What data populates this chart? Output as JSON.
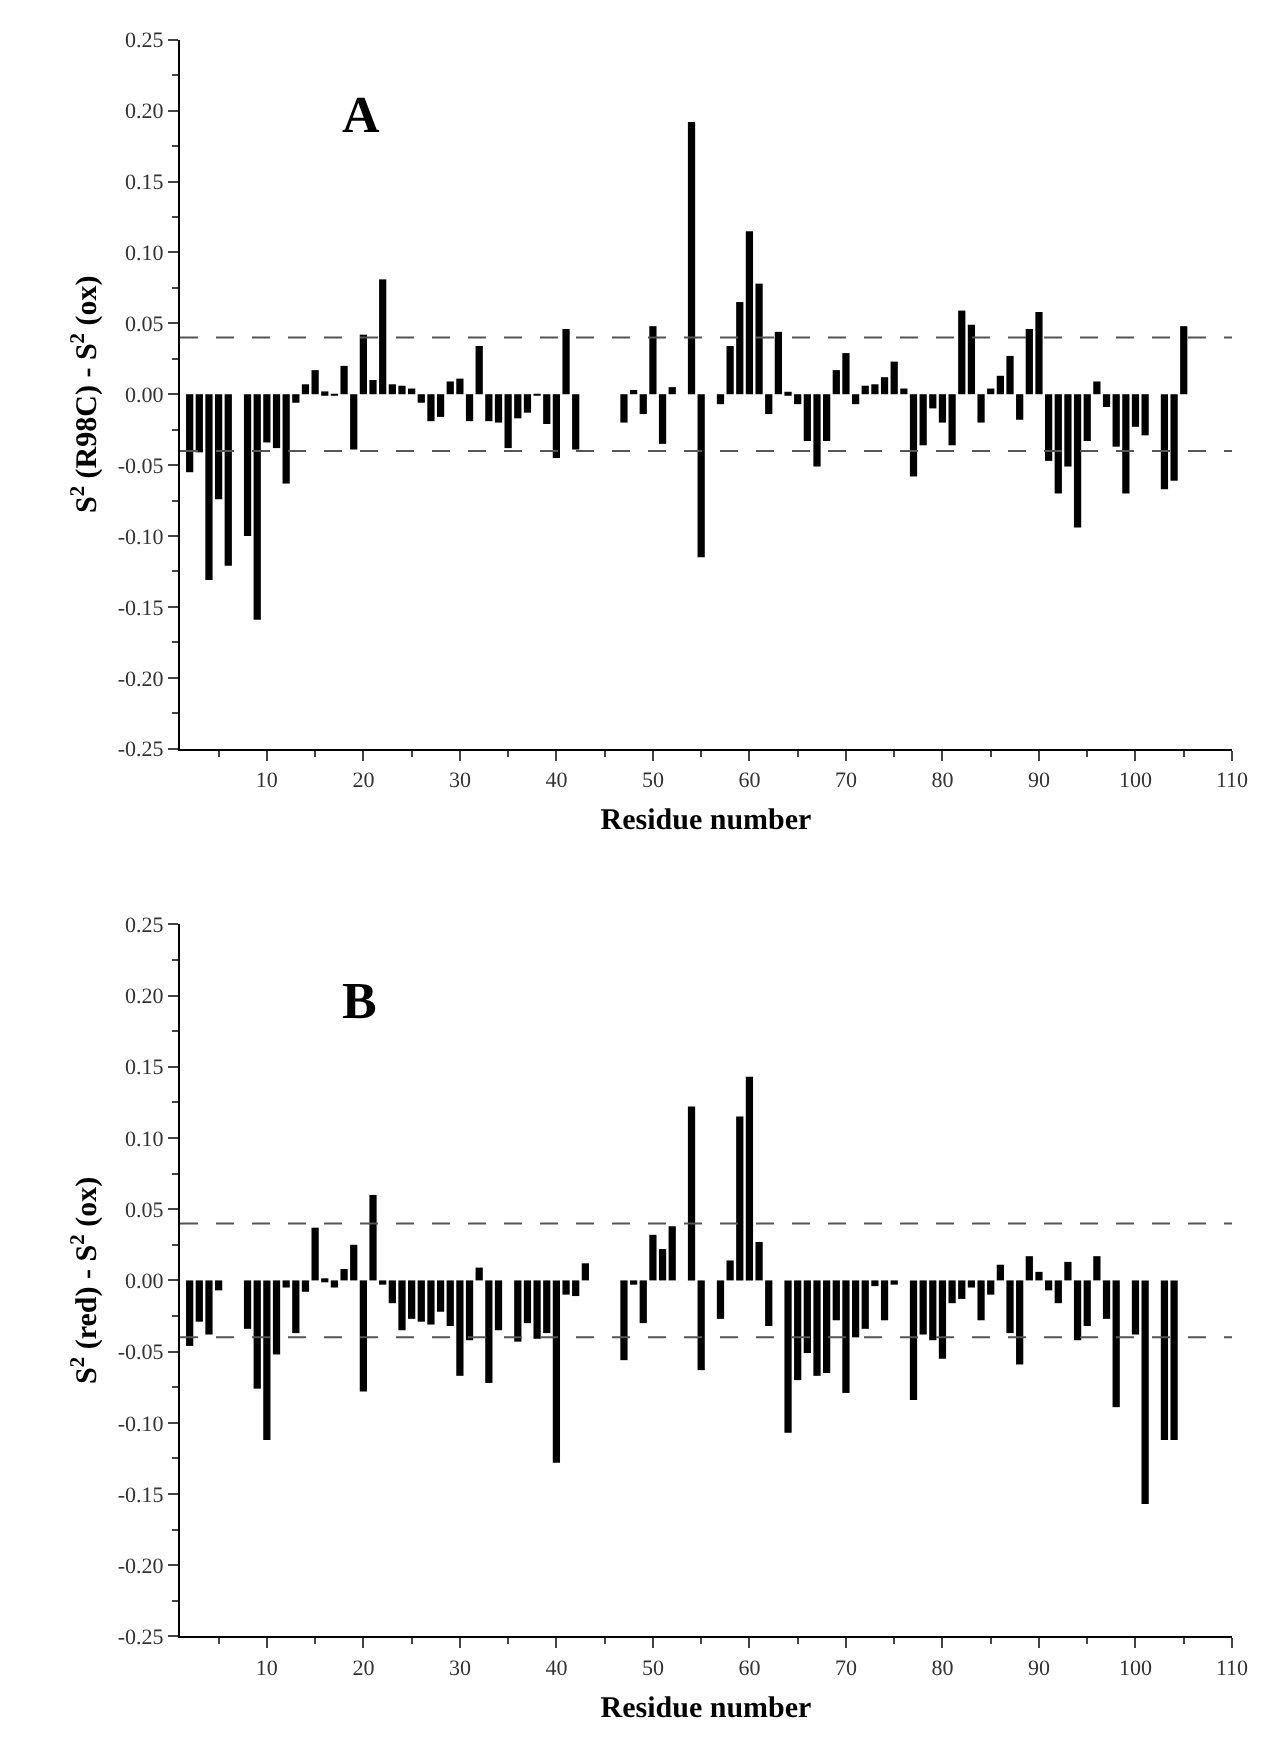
{
  "chart_data": [
    {
      "type": "bar",
      "title": "A",
      "xlabel": "Residue number",
      "ylabel": "S$^{2}$ (R98C) - S$^{2}$ (ox)",
      "x": [
        2,
        3,
        4,
        5,
        6,
        8,
        9,
        10,
        11,
        12,
        13,
        14,
        15,
        16,
        17,
        18,
        19,
        20,
        21,
        22,
        23,
        24,
        25,
        26,
        27,
        28,
        29,
        30,
        31,
        32,
        33,
        34,
        35,
        36,
        37,
        38,
        39,
        40,
        41,
        42,
        47,
        48,
        49,
        50,
        51,
        52,
        54,
        55,
        57,
        58,
        59,
        60,
        61,
        62,
        63,
        64,
        65,
        66,
        67,
        68,
        69,
        70,
        71,
        72,
        73,
        74,
        75,
        76,
        77,
        78,
        79,
        80,
        81,
        82,
        83,
        84,
        85,
        86,
        87,
        88,
        89,
        90,
        91,
        92,
        93,
        94,
        95,
        96,
        97,
        98,
        99,
        100,
        101,
        103,
        104,
        105
      ],
      "values": [
        -0.055,
        -0.041,
        -0.131,
        -0.074,
        -0.121,
        -0.1,
        -0.159,
        -0.034,
        -0.038,
        -0.063,
        -0.006,
        0.007,
        0.017,
        0.002,
        -0.001,
        0.02,
        -0.039,
        0.042,
        0.01,
        0.081,
        0.007,
        0.006,
        0.004,
        -0.006,
        -0.019,
        -0.016,
        0.009,
        0.011,
        -0.019,
        0.034,
        -0.019,
        -0.02,
        -0.038,
        -0.017,
        -0.013,
        -0.001,
        -0.021,
        -0.045,
        0.046,
        -0.039,
        -0.02,
        0.003,
        -0.014,
        0.048,
        -0.035,
        0.005,
        0.192,
        -0.115,
        -0.007,
        0.034,
        0.065,
        0.115,
        0.078,
        -0.014,
        0.044,
        0.001,
        -0.007,
        -0.033,
        -0.051,
        -0.033,
        0.017,
        0.029,
        -0.007,
        0.006,
        0.007,
        0.012,
        0.023,
        0.004,
        -0.058,
        -0.036,
        -0.01,
        -0.02,
        -0.036,
        0.059,
        0.049,
        -0.02,
        0.004,
        0.013,
        0.027,
        -0.018,
        0.046,
        0.058,
        -0.047,
        -0.07,
        -0.051,
        -0.094,
        -0.033,
        0.009,
        -0.009,
        -0.037,
        -0.07,
        -0.023,
        -0.029,
        -0.067,
        -0.061,
        0.048
      ],
      "color": "#000000",
      "xlim": [
        1,
        110
      ],
      "xticks": [
        10,
        20,
        30,
        40,
        50,
        60,
        70,
        80,
        90,
        100,
        110
      ],
      "ylim": [
        -0.25,
        0.25
      ],
      "yticks": [
        {
          "value": -0.25,
          "label": "-0.25"
        },
        {
          "value": -0.2,
          "label": "-0.20"
        },
        {
          "value": -0.15,
          "label": "-0.15"
        },
        {
          "value": -0.1,
          "label": "-0.10"
        },
        {
          "value": -0.05,
          "label": "-0.05"
        },
        {
          "value": 0,
          "label": "0.00"
        },
        {
          "value": 0.05,
          "label": "0.05"
        },
        {
          "value": 0.1,
          "label": "0.10"
        },
        {
          "value": 0.15,
          "label": "0.15"
        },
        {
          "value": 0.2,
          "label": "0.20"
        },
        {
          "value": 0.25,
          "label": "0.25"
        }
      ],
      "ref_lines": [
        {
          "axis": "y",
          "value": 0.04,
          "color": "#555555",
          "line_style": "dashed"
        },
        {
          "axis": "y",
          "value": -0.04,
          "color": "#555555",
          "line_style": "dashed"
        }
      ]
    },
    {
      "type": "bar",
      "title": "B",
      "xlabel": "Residue number",
      "ylabel": "S$^{2}$ (red) - S$^{2}$ (ox)",
      "x": [
        2,
        3,
        4,
        5,
        8,
        9,
        10,
        11,
        12,
        13,
        14,
        15,
        16,
        17,
        18,
        19,
        20,
        21,
        22,
        23,
        24,
        25,
        26,
        27,
        28,
        29,
        30,
        31,
        32,
        33,
        34,
        36,
        37,
        38,
        39,
        40,
        41,
        42,
        43,
        47,
        48,
        49,
        50,
        51,
        52,
        54,
        55,
        57,
        58,
        59,
        60,
        61,
        62,
        64,
        65,
        66,
        67,
        68,
        69,
        70,
        71,
        72,
        73,
        74,
        75,
        77,
        78,
        79,
        80,
        81,
        82,
        83,
        84,
        85,
        86,
        87,
        88,
        89,
        90,
        91,
        92,
        93,
        94,
        95,
        96,
        97,
        98,
        100,
        101,
        103,
        104
      ],
      "values": [
        -0.046,
        -0.029,
        -0.038,
        -0.007,
        -0.034,
        -0.076,
        -0.112,
        -0.052,
        -0.005,
        -0.037,
        -0.008,
        0.037,
        0.001,
        -0.005,
        0.008,
        0.025,
        -0.078,
        0.06,
        -0.003,
        -0.016,
        -0.035,
        -0.027,
        -0.029,
        -0.031,
        -0.022,
        -0.032,
        -0.067,
        -0.042,
        0.009,
        -0.072,
        -0.035,
        -0.043,
        -0.03,
        -0.041,
        -0.037,
        -0.128,
        -0.01,
        -0.011,
        0.012,
        -0.056,
        -0.003,
        -0.03,
        0.032,
        0.022,
        0.038,
        0.122,
        -0.063,
        -0.027,
        0.014,
        0.115,
        0.143,
        0.027,
        -0.032,
        -0.107,
        -0.07,
        -0.051,
        -0.067,
        -0.065,
        -0.028,
        -0.079,
        -0.04,
        -0.034,
        -0.004,
        -0.028,
        -0.003,
        -0.084,
        -0.038,
        -0.042,
        -0.055,
        -0.016,
        -0.013,
        -0.005,
        -0.028,
        -0.01,
        0.011,
        -0.037,
        -0.059,
        0.017,
        0.006,
        -0.007,
        -0.016,
        0.013,
        -0.042,
        -0.032,
        0.017,
        -0.027,
        -0.089,
        -0.038,
        -0.157,
        -0.112,
        -0.112
      ],
      "color": "#000000",
      "xlim": [
        1,
        110
      ],
      "xticks": [
        10,
        20,
        30,
        40,
        50,
        60,
        70,
        80,
        90,
        100,
        110
      ],
      "ylim": [
        -0.25,
        0.25
      ],
      "yticks": [
        {
          "value": -0.25,
          "label": "-0.25"
        },
        {
          "value": -0.2,
          "label": "-0.20"
        },
        {
          "value": -0.15,
          "label": "-0.15"
        },
        {
          "value": -0.1,
          "label": "-0.10"
        },
        {
          "value": -0.05,
          "label": "-0.05"
        },
        {
          "value": 0,
          "label": "0.00"
        },
        {
          "value": 0.05,
          "label": "0.05"
        },
        {
          "value": 0.1,
          "label": "0.10"
        },
        {
          "value": 0.15,
          "label": "0.15"
        },
        {
          "value": 0.2,
          "label": "0.20"
        },
        {
          "value": 0.25,
          "label": "0.25"
        }
      ],
      "ref_lines": [
        {
          "axis": "y",
          "value": 0.04,
          "color": "#555555",
          "line_style": "dashed"
        },
        {
          "axis": "y",
          "value": -0.04,
          "color": "#555555",
          "line_style": "dashed"
        }
      ]
    }
  ]
}
